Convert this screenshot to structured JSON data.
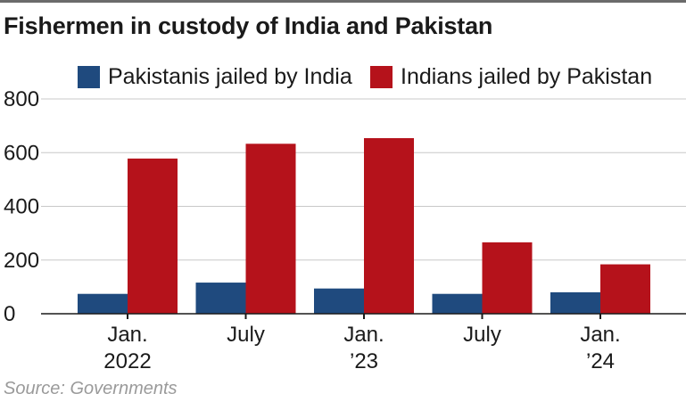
{
  "title": "Fishermen in custody of India and Pakistan",
  "source": "Source: Governments",
  "colors": {
    "series1": "#1f4a7e",
    "series2": "#b5121b",
    "grid": "#c8c8c8",
    "axis": "#1a1a1a"
  },
  "chart_data": {
    "type": "bar",
    "title": "Fishermen in custody of India and Pakistan",
    "xlabel": "",
    "ylabel": "",
    "ylim": [
      0,
      800
    ],
    "yticks": [
      0,
      200,
      400,
      600,
      800
    ],
    "grid": true,
    "legend_position": "top",
    "categories": [
      [
        "Jan.",
        "2022"
      ],
      [
        "July"
      ],
      [
        "Jan.",
        "’23"
      ],
      [
        "July"
      ],
      [
        "Jan.",
        "’24"
      ]
    ],
    "series": [
      {
        "name": "Pakistanis jailed by India",
        "color": "#1f4a7e",
        "values": [
          74,
          116,
          94,
          74,
          80
        ]
      },
      {
        "name": "Indians jailed by Pakistan",
        "color": "#b5121b",
        "values": [
          578,
          633,
          654,
          266,
          184
        ]
      }
    ]
  }
}
